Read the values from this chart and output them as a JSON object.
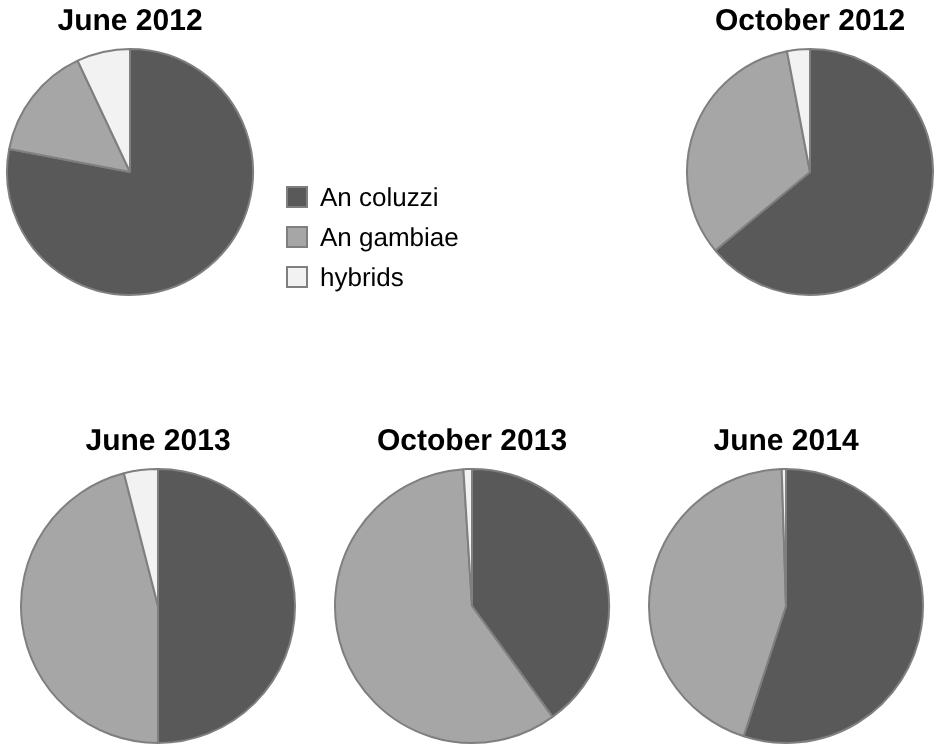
{
  "chart_data": [
    {
      "type": "pie",
      "title": "June 2012",
      "categories": [
        "An coluzzi",
        "An gambiae",
        "hybrids"
      ],
      "values": [
        78,
        15,
        7
      ],
      "colors": [
        "#595959",
        "#a6a6a6",
        "#f2f2f2"
      ],
      "legend": "right"
    },
    {
      "type": "pie",
      "title": "October 2012",
      "categories": [
        null,
        null,
        null
      ],
      "values": [
        64,
        33,
        3
      ],
      "colors": [
        "#595959",
        "#a6a6a6",
        "#f2f2f2"
      ]
    },
    {
      "type": "pie",
      "title": "June 2013",
      "categories": [
        null,
        null,
        null
      ],
      "values": [
        50,
        46,
        4
      ],
      "colors": [
        "#595959",
        "#a6a6a6",
        "#f2f2f2"
      ]
    },
    {
      "type": "pie",
      "title": "October 2013",
      "categories": [
        null,
        null,
        null
      ],
      "values": [
        40,
        59,
        1
      ],
      "colors": [
        "#595959",
        "#a6a6a6",
        "#f2f2f2"
      ]
    },
    {
      "type": "pie",
      "title": "June 2014",
      "categories": [
        null,
        null,
        null
      ],
      "values": [
        55,
        44.5,
        0.5
      ],
      "colors": [
        "#595959",
        "#a6a6a6",
        "#f2f2f2"
      ]
    }
  ]
}
